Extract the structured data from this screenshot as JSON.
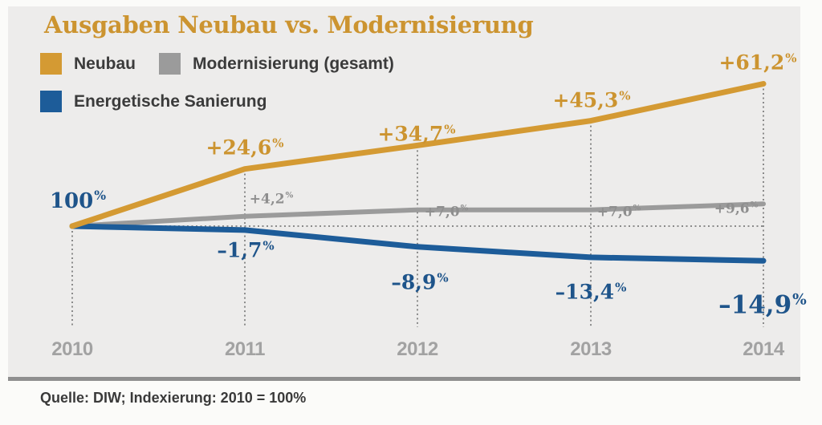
{
  "title": {
    "text": "Ausgaben Neubau vs. Modernisierung",
    "color": "#cc9430"
  },
  "legend": {
    "items": [
      {
        "label": "Neubau",
        "color": "#d49a33"
      },
      {
        "label": "Modernisierung (gesamt)",
        "color": "#9b9b9b"
      },
      {
        "label": "Energetische Sanierung",
        "color": "#1d5c99"
      }
    ]
  },
  "start_label": "100",
  "percent_sign": "%",
  "source_note": "Quelle: DIW; Indexierung: 2010 = 100%",
  "colors": {
    "panel_background": "#edeceb",
    "grid_dotted": "#8a8a8a",
    "axis_year_text": "#a2a2a2",
    "panel_bottom_border": "#8f8f8f"
  },
  "chart_data": {
    "type": "line",
    "title": "Ausgaben Neubau vs. Modernisierung",
    "x": [
      "2010",
      "2011",
      "2012",
      "2013",
      "2014"
    ],
    "index_note": "2010 = 100%",
    "ylim": [
      80,
      165
    ],
    "grid": "dotted vertical line at each year; dotted horizontal baseline at 100",
    "legend_position": "top-left",
    "series": [
      {
        "name": "Neubau",
        "color": "#d49a33",
        "label_color": "#cc9430",
        "values": [
          100,
          124.6,
          134.7,
          145.3,
          161.2
        ],
        "point_labels": [
          "+24,6",
          "+34,7",
          "+45,3",
          "+61,2"
        ]
      },
      {
        "name": "Modernisierung (gesamt)",
        "color": "#9b9b9b",
        "label_color": "#8e8e8e",
        "values": [
          100,
          104.2,
          107.0,
          107.0,
          109.6
        ],
        "point_labels": [
          "+4,2",
          "+7,0",
          "+7,0",
          "+9,6"
        ]
      },
      {
        "name": "Energetische Sanierung",
        "color": "#1d5c99",
        "label_color": "#1e548a",
        "values": [
          100,
          98.3,
          91.1,
          86.6,
          85.1
        ],
        "point_labels": [
          "–1,7",
          "–8,9",
          "–13,4",
          "–14,9"
        ]
      }
    ]
  }
}
